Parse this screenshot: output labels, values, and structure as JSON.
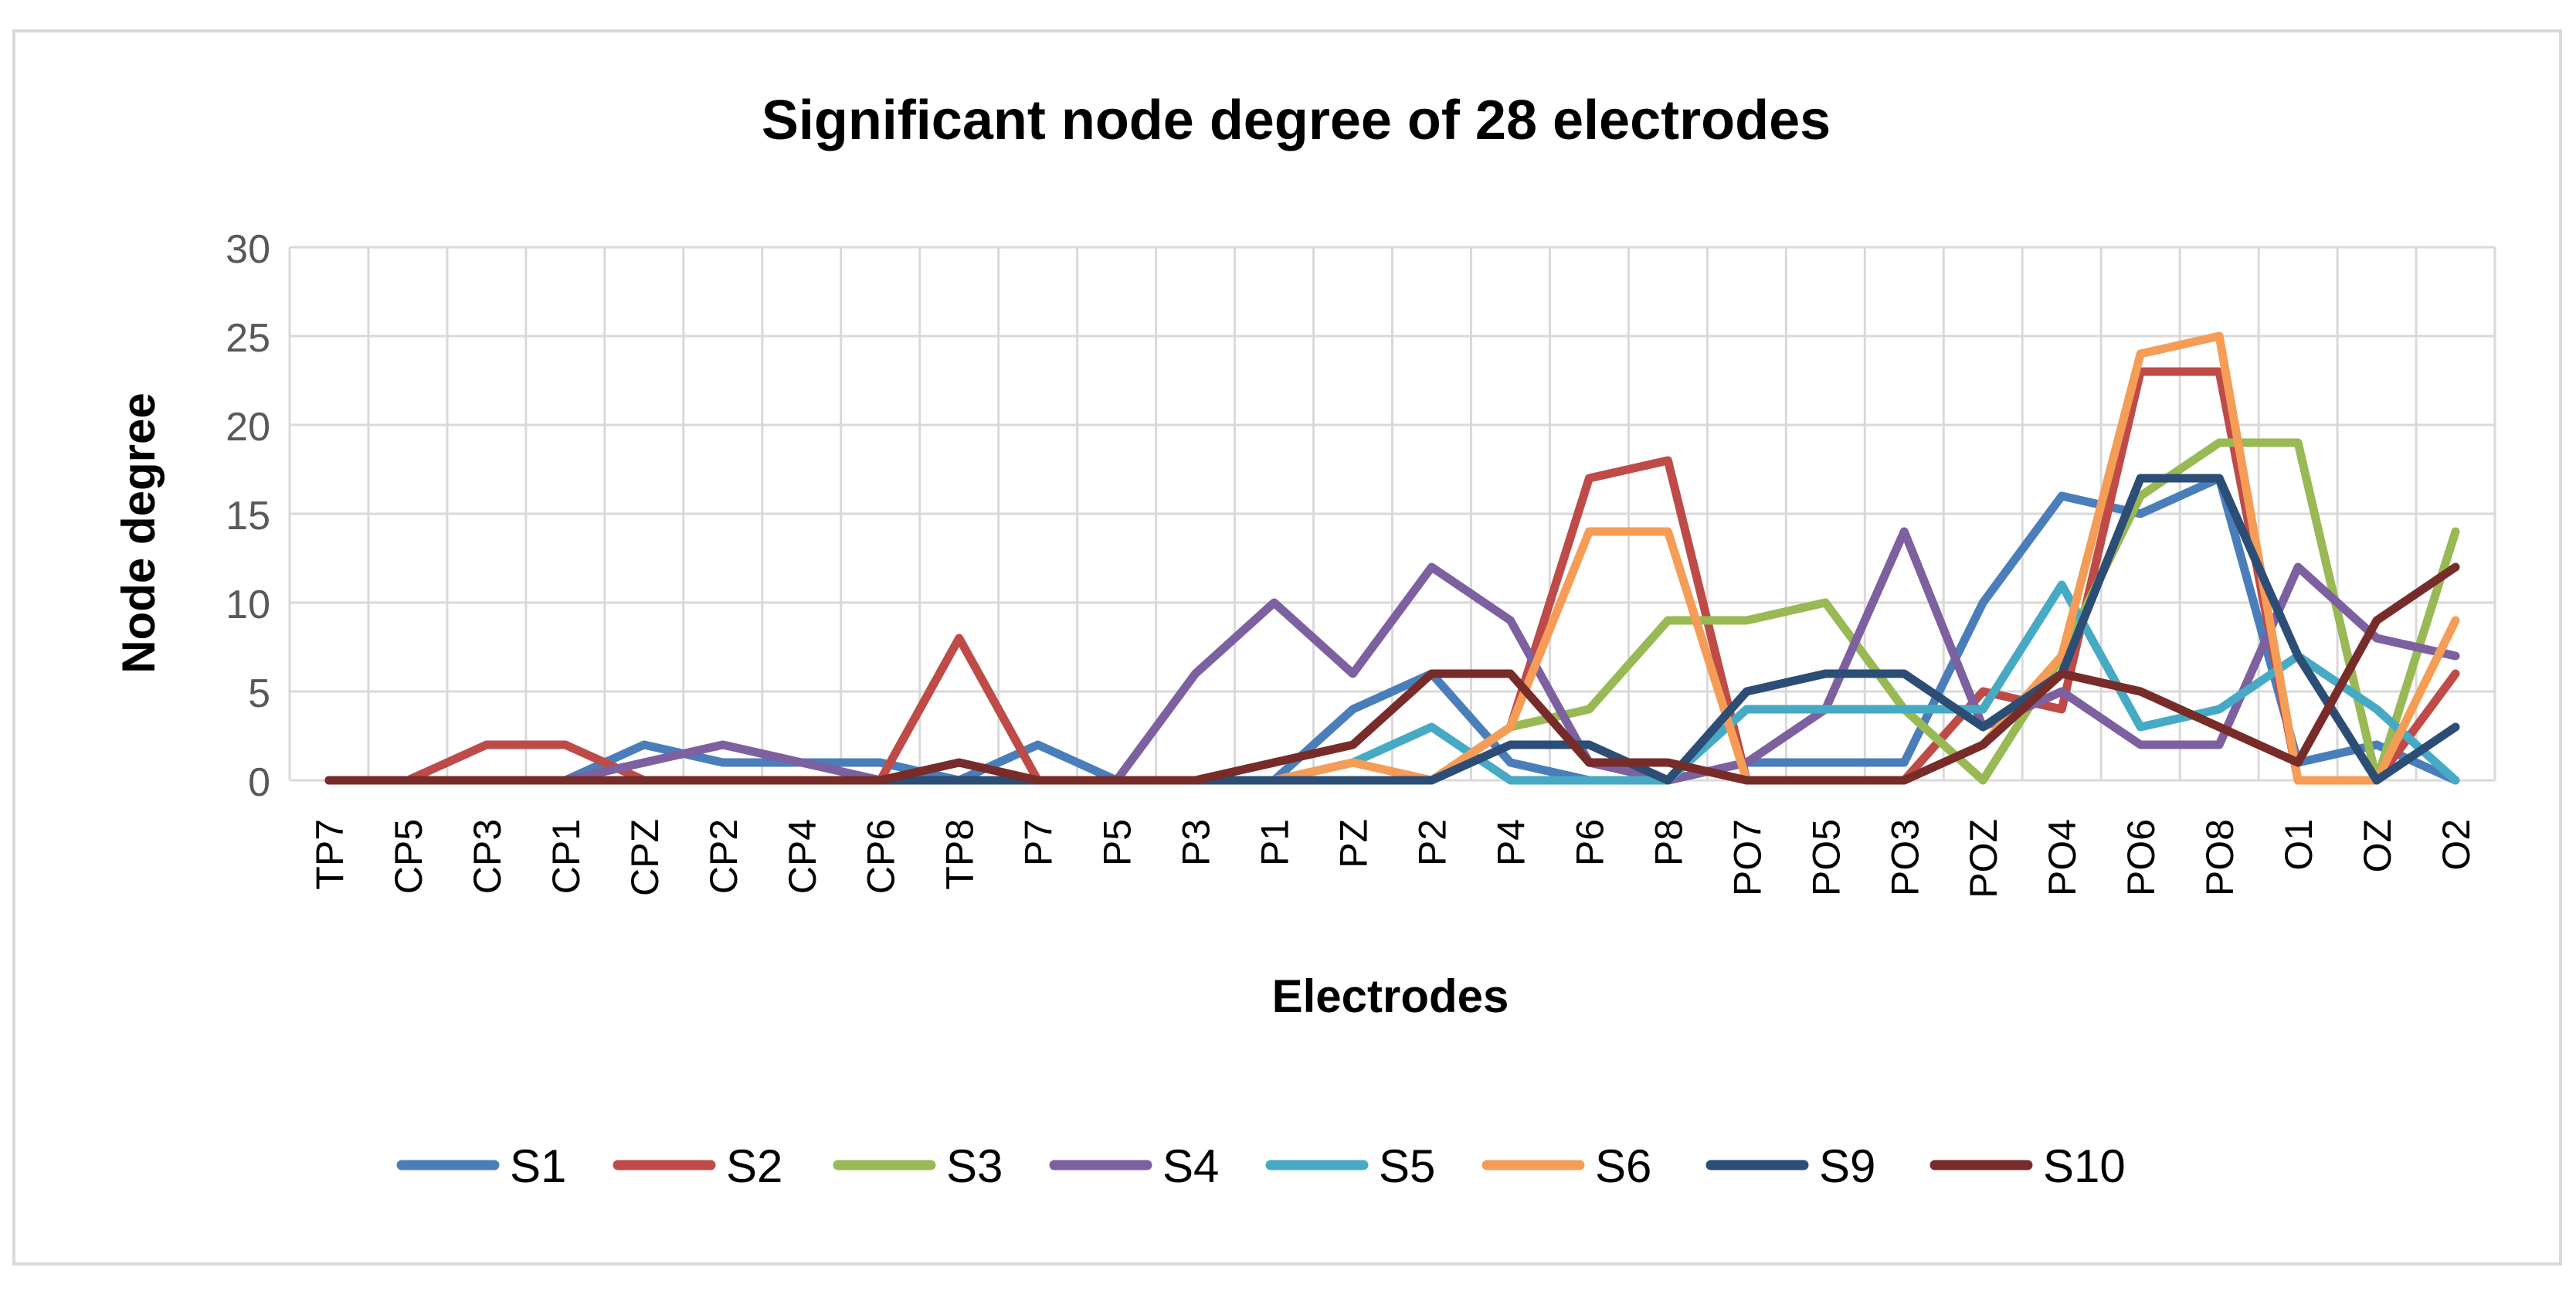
{
  "chart_data": {
    "type": "line",
    "title": "Significant node degree of 28 electrodes",
    "xlabel": "Electrodes",
    "ylabel": "Node degree",
    "ylim": [
      0,
      30
    ],
    "yticks": [
      0,
      5,
      10,
      15,
      20,
      25,
      30
    ],
    "grid": true,
    "legend_position": "bottom",
    "categories": [
      "TP7",
      "CP5",
      "CP3",
      "CP1",
      "CPZ",
      "CP2",
      "CP4",
      "CP6",
      "TP8",
      "P7",
      "P5",
      "P3",
      "P1",
      "PZ",
      "P2",
      "P4",
      "P6",
      "P8",
      "PO7",
      "PO5",
      "PO3",
      "POZ",
      "PO4",
      "PO6",
      "PO8",
      "O1",
      "OZ",
      "O2"
    ],
    "series": [
      {
        "name": "S1",
        "color": "#4a7ebb",
        "values": [
          0,
          0,
          0,
          0,
          2,
          1,
          1,
          1,
          0,
          2,
          0,
          0,
          0,
          4,
          6,
          1,
          0,
          0,
          1,
          1,
          1,
          10,
          16,
          15,
          17,
          1,
          2,
          0
        ]
      },
      {
        "name": "S2",
        "color": "#be4b48",
        "values": [
          0,
          0,
          2,
          2,
          0,
          0,
          0,
          0,
          8,
          0,
          0,
          0,
          0,
          0,
          0,
          3,
          17,
          18,
          0,
          0,
          0,
          5,
          4,
          23,
          23,
          0,
          0,
          6
        ]
      },
      {
        "name": "S3",
        "color": "#98b954",
        "values": [
          0,
          0,
          0,
          0,
          0,
          0,
          0,
          0,
          0,
          0,
          0,
          0,
          0,
          0,
          0,
          3,
          4,
          9,
          9,
          10,
          4,
          0,
          7,
          16,
          19,
          19,
          0,
          14
        ]
      },
      {
        "name": "S4",
        "color": "#7d60a0",
        "values": [
          0,
          0,
          0,
          0,
          1,
          2,
          1,
          0,
          0,
          0,
          0,
          6,
          10,
          6,
          12,
          9,
          1,
          0,
          1,
          4,
          14,
          3,
          5,
          2,
          2,
          12,
          8,
          7
        ]
      },
      {
        "name": "S5",
        "color": "#46aac5",
        "values": [
          0,
          0,
          0,
          0,
          0,
          0,
          0,
          0,
          0,
          0,
          0,
          0,
          0,
          1,
          3,
          0,
          0,
          0,
          4,
          4,
          4,
          4,
          11,
          3,
          4,
          7,
          4,
          0
        ]
      },
      {
        "name": "S6",
        "color": "#f59d56",
        "values": [
          0,
          0,
          0,
          0,
          0,
          0,
          0,
          0,
          0,
          0,
          0,
          0,
          0,
          1,
          0,
          3,
          14,
          14,
          0,
          0,
          0,
          2,
          7,
          24,
          25,
          0,
          0,
          9
        ]
      },
      {
        "name": "S9",
        "color": "#2c4d75",
        "values": [
          0,
          0,
          0,
          0,
          0,
          0,
          0,
          0,
          0,
          0,
          0,
          0,
          0,
          0,
          0,
          2,
          2,
          0,
          5,
          6,
          6,
          3,
          6,
          17,
          17,
          7,
          0,
          3
        ]
      },
      {
        "name": "S10",
        "color": "#772c2a",
        "values": [
          0,
          0,
          0,
          0,
          0,
          0,
          0,
          0,
          1,
          0,
          0,
          0,
          1,
          2,
          6,
          6,
          1,
          1,
          0,
          0,
          0,
          2,
          6,
          5,
          3,
          1,
          9,
          12
        ]
      }
    ]
  }
}
